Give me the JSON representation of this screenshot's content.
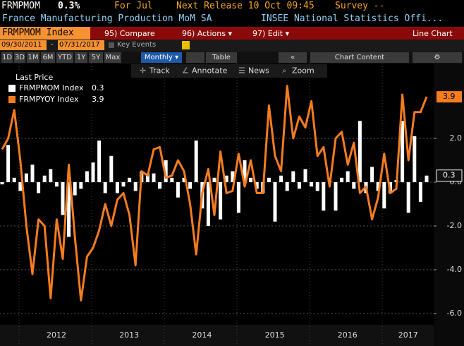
{
  "header": {
    "ticker": "FRMPMOM",
    "last": "0.3%",
    "period": "For Jul",
    "next_release": "Next Release 10 Oct 09:45",
    "survey": "Survey --",
    "name": "France Manufacturing Production MoM SA",
    "source": "INSEE National Statistics Offi..."
  },
  "toolbar": {
    "security": "FRMPMOM Index",
    "compare": "95) Compare",
    "actions": "96) Actions ▾",
    "edit": "97) Edit ▾",
    "chart_type": "Line Chart"
  },
  "dates": {
    "start": "09/30/2011",
    "sep": "-",
    "end": "07/31/2017",
    "key_events": "Key Events"
  },
  "ranges": [
    "1D",
    "3D",
    "1M",
    "6M",
    "YTD",
    "1Y",
    "5Y",
    "Max"
  ],
  "frequency": "Monthly ▾",
  "table": "Table",
  "chart_content": "Chart Content",
  "tools": [
    "Track",
    "Annotate",
    "News",
    "Zoom"
  ],
  "chart_data": {
    "type": "combo",
    "legend_title": "Last Price",
    "categories": [
      null,
      null,
      null,
      null,
      null,
      null,
      null,
      null,
      null,
      null,
      "2012",
      null,
      null,
      null,
      null,
      null,
      null,
      null,
      null,
      null,
      null,
      null,
      "2013",
      null,
      null,
      null,
      null,
      null,
      null,
      null,
      null,
      null,
      null,
      null,
      "2014",
      null,
      null,
      null,
      null,
      null,
      null,
      null,
      null,
      null,
      null,
      null,
      "2015",
      null,
      null,
      null,
      null,
      null,
      null,
      null,
      null,
      null,
      null,
      null,
      "2016",
      null,
      null,
      null,
      null,
      null,
      null,
      null,
      null,
      null,
      "2017",
      null,
      null
    ],
    "series": [
      {
        "name": "FRMPMOM Index",
        "type": "bar",
        "color": "#ffffff",
        "values": [
          -0.1,
          1.7,
          0.2,
          -0.4,
          0.4,
          0.8,
          -0.5,
          0.3,
          0.6,
          -0.2,
          -1.5,
          -2.5,
          -0.6,
          -0.3,
          0.5,
          0.9,
          1.9,
          -0.5,
          1.2,
          -0.5,
          -0.2,
          0.2,
          -0.4,
          0.5,
          0.4,
          0.4,
          -0.3,
          1.0,
          0.2,
          -0.7,
          0.2,
          -0.3,
          1.9,
          -1.2,
          -2.0,
          0.2,
          -1.7,
          0.3,
          0.5,
          -1.4,
          1.0,
          0.2,
          -0.3,
          -0.5,
          0.2,
          -1.8,
          0.3,
          -0.4,
          0.5,
          -0.3,
          0.6,
          -0.2,
          -0.4,
          -1.3,
          0.2,
          -1.3,
          0.2,
          0.5,
          -0.3,
          2.8,
          -0.5,
          0.7,
          -0.4,
          -1.2,
          -0.5,
          0.1,
          2.8,
          -1.4,
          2.1,
          -0.9,
          0.3
        ]
      },
      {
        "name": "FRMPYOY Index",
        "type": "line",
        "color": "#f57c1f",
        "values": [
          1.5,
          2.0,
          3.3,
          1.0,
          -2.0,
          -4.2,
          -1.7,
          -2.0,
          -5.3,
          -1.7,
          -3.5,
          0.8,
          -2.5,
          -5.4,
          -3.4,
          -3.0,
          -2.2,
          -1.0,
          -2.0,
          -0.8,
          -0.5,
          -1.5,
          -3.8,
          0.5,
          0.3,
          1.5,
          1.6,
          0.2,
          0.3,
          1.0,
          0.5,
          -1.0,
          -3.3,
          -0.5,
          0.6,
          -1.5,
          1.4,
          -0.5,
          -0.4,
          1.3,
          -0.2,
          1.0,
          -0.5,
          -0.5,
          3.5,
          1.2,
          0.5,
          4.4,
          2.0,
          3.0,
          2.5,
          3.7,
          1.2,
          1.6,
          -0.2,
          2.0,
          2.3,
          0.8,
          1.8,
          -0.5,
          -0.2,
          -1.7,
          -0.7,
          1.3,
          -0.5,
          -0.3,
          4.0,
          1.0,
          3.2,
          3.2,
          3.9
        ]
      }
    ],
    "ylim": [
      -6.5,
      5.3
    ],
    "yticks": [
      {
        "value": 2,
        "label": "2.0"
      },
      {
        "value": 0,
        "label": "0.0"
      },
      {
        "value": -2,
        "label": "-2.0"
      },
      {
        "value": -4,
        "label": "-4.0"
      },
      {
        "value": -6,
        "label": "-6.0"
      }
    ],
    "grid": true
  }
}
